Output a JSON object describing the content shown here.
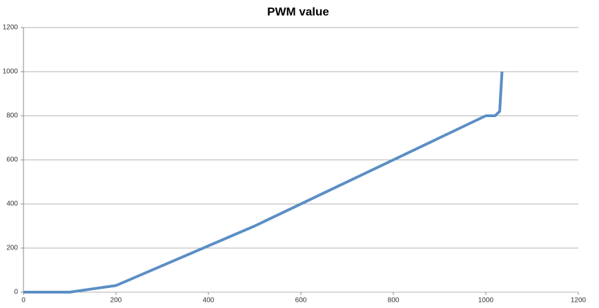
{
  "chart_data": {
    "type": "line",
    "title": "PWM value",
    "x": [
      0,
      100,
      200,
      500,
      1000,
      1010,
      1020,
      1030,
      1035
    ],
    "series": [
      {
        "name": "PWM value",
        "color": "#5b8ec6",
        "values": [
          0,
          0,
          30,
          300,
          800,
          800,
          800,
          820,
          1000
        ]
      }
    ],
    "xlim": [
      0,
      1200
    ],
    "xticks": [
      0,
      200,
      400,
      600,
      800,
      1000,
      1200
    ],
    "ylim": [
      0,
      1200
    ],
    "yticks": [
      0,
      200,
      400,
      600,
      800,
      1000,
      1200
    ],
    "grid": true
  }
}
